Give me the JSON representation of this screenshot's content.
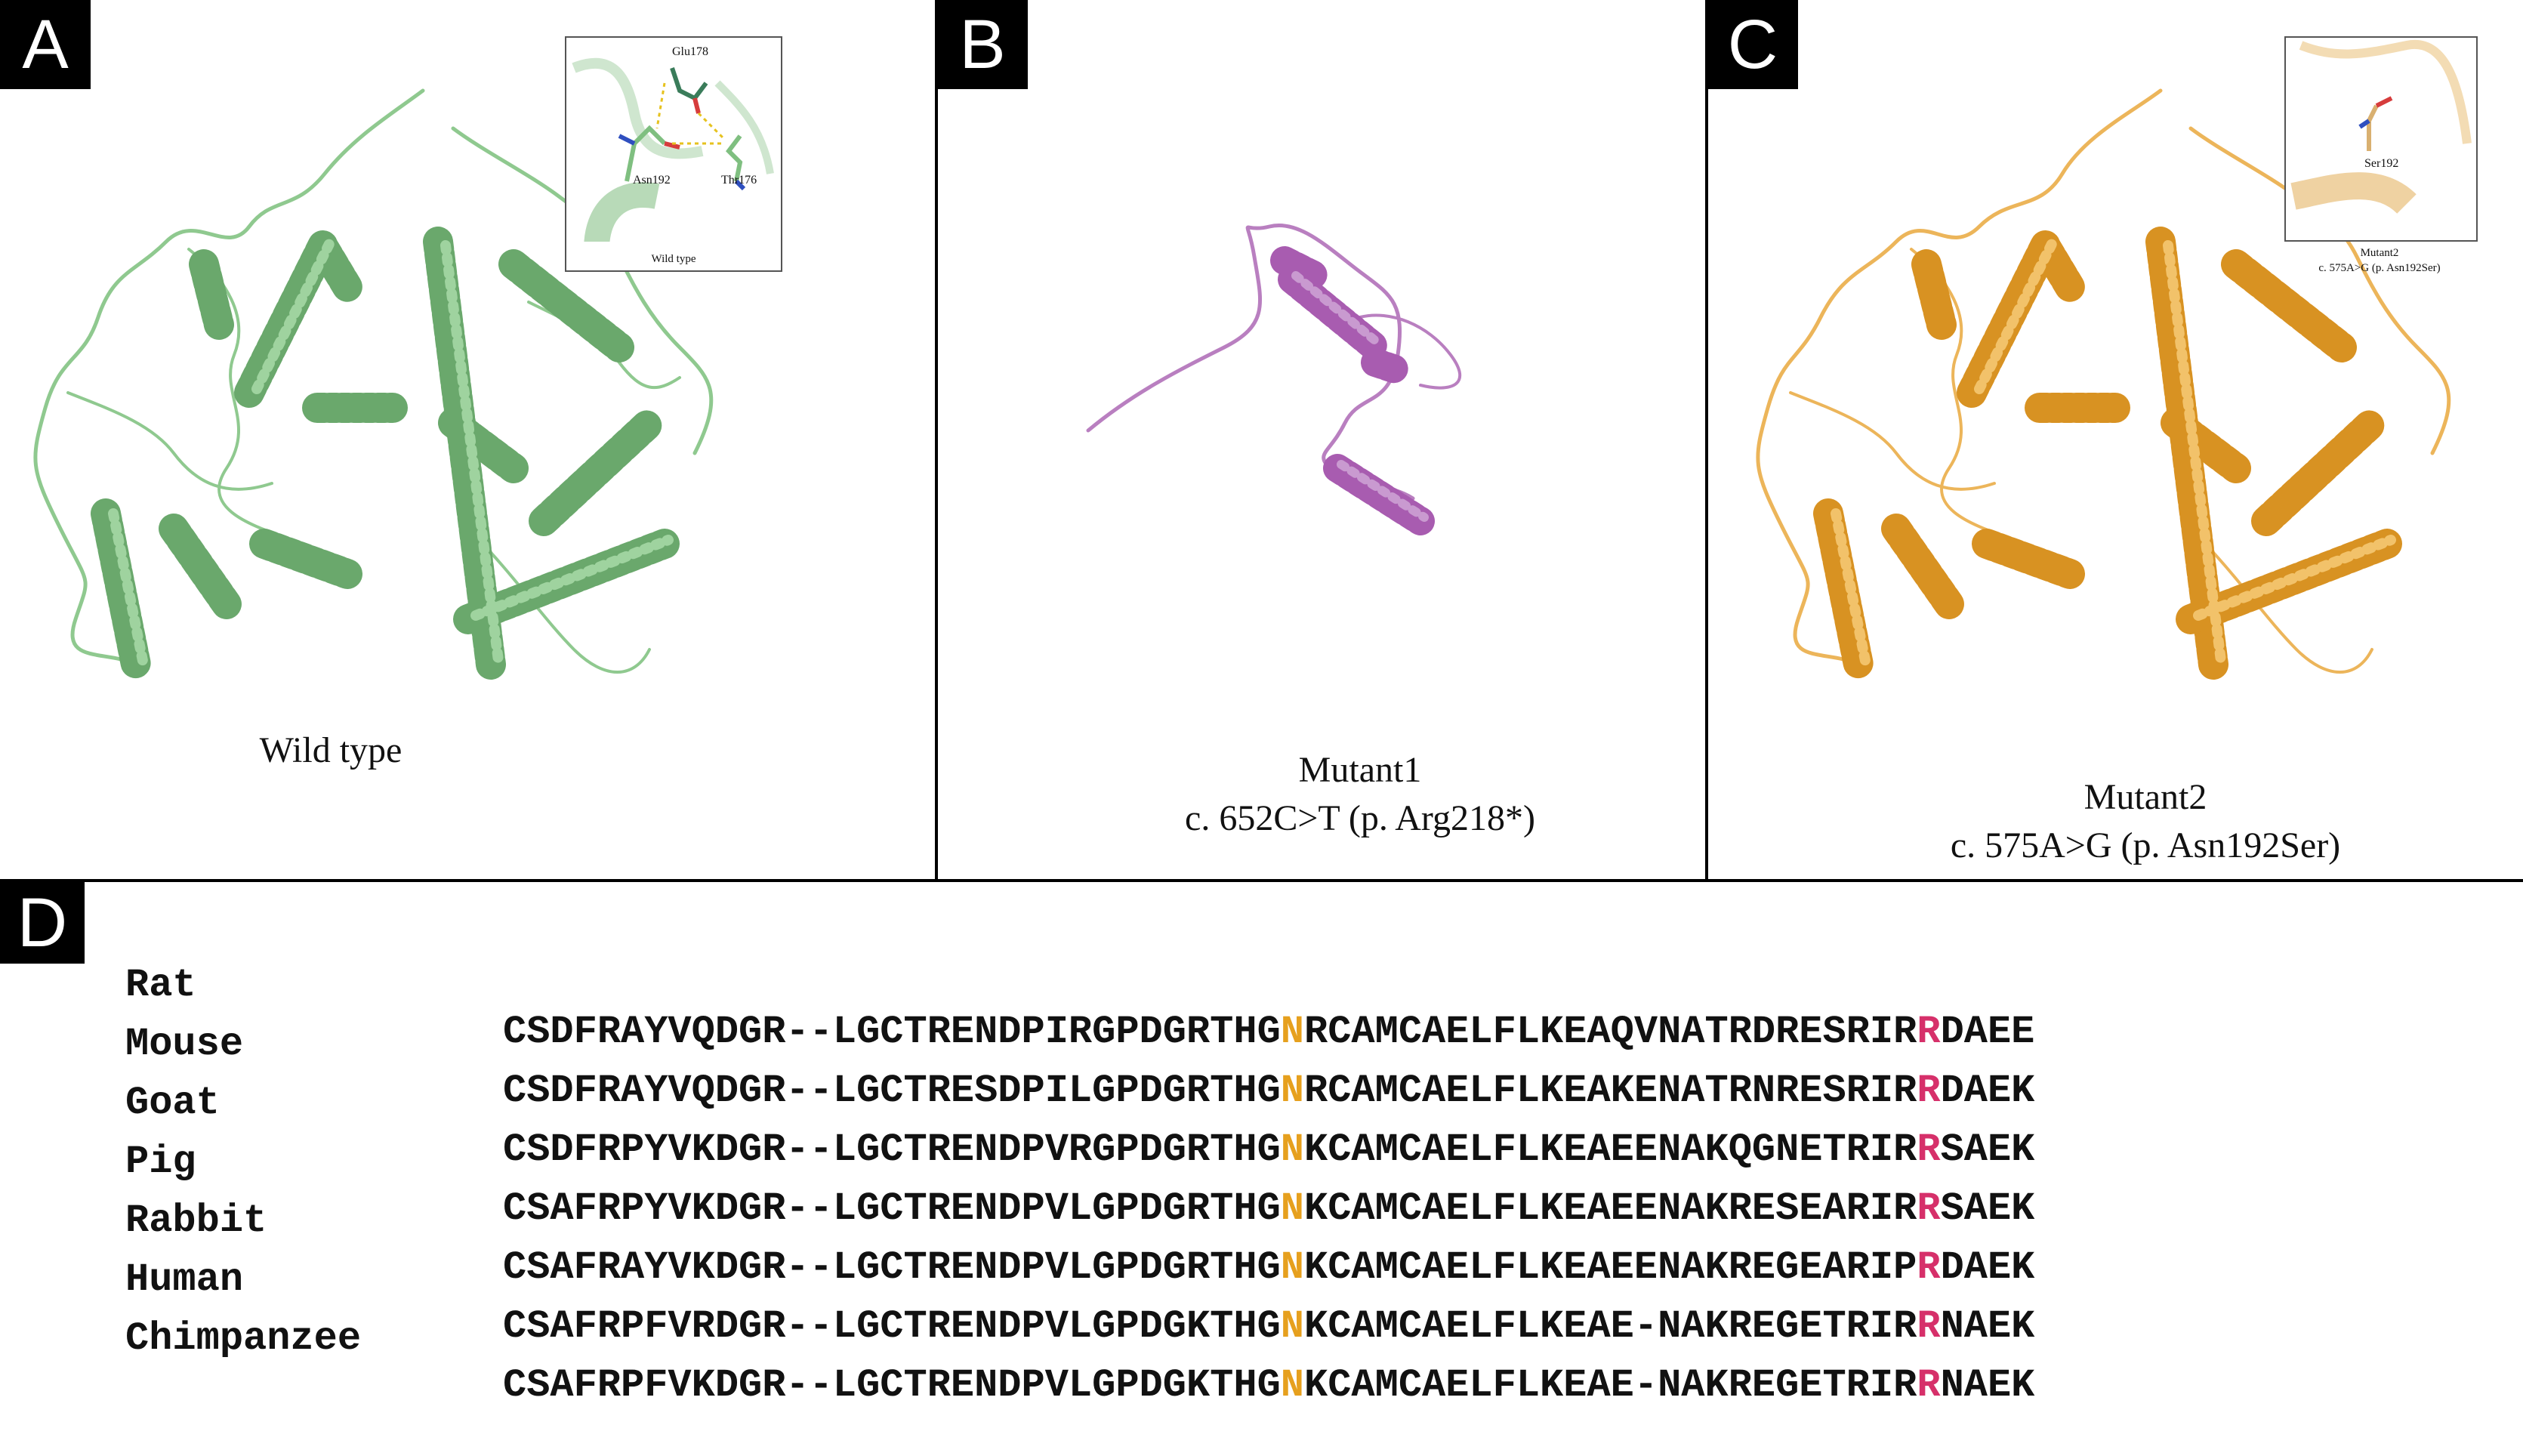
{
  "panels": {
    "a": {
      "tag": "A",
      "caption": "Wild type"
    },
    "b": {
      "tag": "B",
      "caption_line1": "Mutant1",
      "caption_line2": "c. 652C>T (p. Arg218*)"
    },
    "c": {
      "tag": "C",
      "caption_line1": "Mutant2",
      "caption_line2": "c. 575A>G (p. Asn192Ser)"
    },
    "d": {
      "tag": "D"
    }
  },
  "insets": {
    "a": {
      "labels": {
        "glu": "Glu178",
        "asn": "Asn192",
        "thr": "Thr176"
      },
      "caption": "Wild type"
    },
    "c": {
      "labels": {
        "ser": "Ser192"
      },
      "caption_line1": "Mutant2",
      "caption_line2": "c. 575A>G (p. Asn192Ser)"
    }
  },
  "colors": {
    "wild_type": "#7fbf80",
    "mutant1": "#a85cb0",
    "mutant2": "#e29c2a",
    "highlight_n": "#e6a01e",
    "highlight_r": "#d6306a"
  },
  "alignment": [
    {
      "species": "Rat",
      "pre": "CSDFRAYVQDGR--LGCTRENDPIRGPDGRTHG",
      "n": "N",
      "mid": "RCAMCAELFLKEAQVNATRDRESRIR",
      "r": "R",
      "post": "DAEE"
    },
    {
      "species": "Mouse",
      "pre": "CSDFRAYVQDGR--LGCTRESDPILGPDGRTHG",
      "n": "N",
      "mid": "RCAMCAELFLKEAKENATRNRESRIR",
      "r": "R",
      "post": "DAEK"
    },
    {
      "species": "Goat",
      "pre": "CSDFRPYVKDGR--LGCTRENDPVRGPDGRTHG",
      "n": "N",
      "mid": "KCAMCAELFLKEAEENAKQGNETRIR",
      "r": "R",
      "post": "SAEK"
    },
    {
      "species": "Pig",
      "pre": "CSAFRPYVKDGR--LGCTRENDPVLGPDGRTHG",
      "n": "N",
      "mid": "KCAMCAELFLKEAEENAKRESEARIR",
      "r": "R",
      "post": "SAEK"
    },
    {
      "species": "Rabbit",
      "pre": "CSAFRAYVKDGR--LGCTRENDPVLGPDGRTHG",
      "n": "N",
      "mid": "KCAMCAELFLKEAEENAKREGEARIP",
      "r": "R",
      "post": "DAEK"
    },
    {
      "species": "Human",
      "pre": "CSAFRPFVRDGR--LGCTRENDPVLGPDGKTHG",
      "n": "N",
      "mid": "KCAMCAELFLKEAE-NAKREGETRIR",
      "r": "R",
      "post": "NAEK"
    },
    {
      "species": "Chimpanzee",
      "pre": "CSAFRPFVKDGR--LGCTRENDPVLGPDGKTHG",
      "n": "N",
      "mid": "KCAMCAELFLKEAE-NAKREGETRIR",
      "r": "R",
      "post": "NAEK"
    }
  ]
}
